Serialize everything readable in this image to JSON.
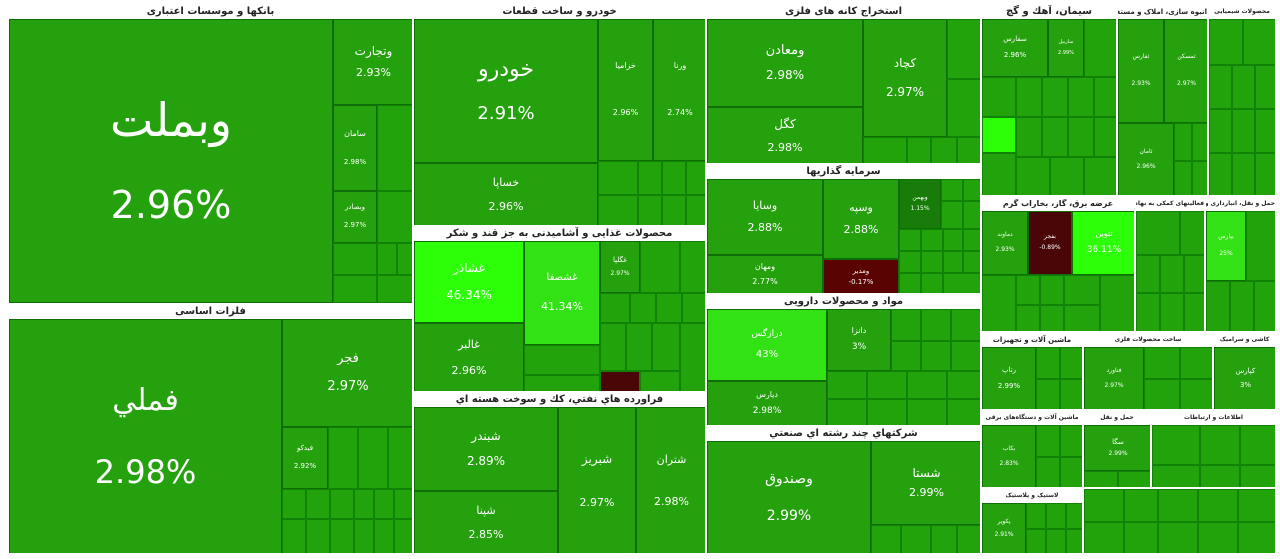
{
  "sectors": [
    {
      "id": "banks",
      "title": "بانکها و موسسات اعتباری",
      "tiles": [
        {
          "name": "وبملت",
          "pct": "2.96%"
        },
        {
          "name": "وتجارت",
          "pct": "2.93%"
        },
        {
          "name": "سامان",
          "pct": "2.98%"
        },
        {
          "name": "وبصادر",
          "pct": "2.97%"
        }
      ]
    },
    {
      "id": "basic-metals",
      "title": "فلزات اساسی",
      "tiles": [
        {
          "name": "فملي",
          "pct": "2.98%"
        },
        {
          "name": "فجر",
          "pct": "2.97%"
        },
        {
          "name": "فيدکو",
          "pct": "2.92%"
        }
      ]
    },
    {
      "id": "auto",
      "title": "خودرو و ساخت قطعات",
      "tiles": [
        {
          "name": "خودرو",
          "pct": "2.91%"
        },
        {
          "name": "خساپا",
          "pct": "2.96%"
        },
        {
          "name": "خزاميا",
          "pct": "2.96%"
        },
        {
          "name": "ورنا",
          "pct": "2.74%"
        }
      ]
    },
    {
      "id": "food",
      "title": "محصولات غذایی و آشامیدنی به جز قند و شکر",
      "tiles": [
        {
          "name": "غشاذر",
          "pct": "46.34%"
        },
        {
          "name": "غشصفا",
          "pct": "41.34%"
        },
        {
          "name": "غالبر",
          "pct": "2.96%"
        },
        {
          "name": "غگلپا",
          "pct": "2.97%"
        }
      ]
    },
    {
      "id": "oil",
      "title": "فراورده هاي نفتي، كك و سوخت هسته اي",
      "tiles": [
        {
          "name": "شبندر",
          "pct": "2.89%"
        },
        {
          "name": "شبریز",
          "pct": "2.97%"
        },
        {
          "name": "شتران",
          "pct": "2.98%"
        },
        {
          "name": "شپنا",
          "pct": "2.85%"
        }
      ]
    },
    {
      "id": "mining",
      "title": "استخراج کانه های فلزی",
      "tiles": [
        {
          "name": "ومعادن",
          "pct": "2.98%"
        },
        {
          "name": "کچاد",
          "pct": "2.97%"
        },
        {
          "name": "کگل",
          "pct": "2.98%"
        }
      ]
    },
    {
      "id": "investment",
      "title": "سرمایه گذاریها",
      "tiles": [
        {
          "name": "وسایا",
          "pct": "2.88%"
        },
        {
          "name": "وسپه",
          "pct": "2.88%"
        },
        {
          "name": "ومهان",
          "pct": "2.77%"
        },
        {
          "name": "وبهمن",
          "pct": "1.15%"
        },
        {
          "name": "ومدیر",
          "pct": "-0.17%"
        }
      ]
    },
    {
      "id": "pharma",
      "title": "مواد و محصولات دارویی",
      "tiles": [
        {
          "name": "درازگس",
          "pct": "43%"
        },
        {
          "name": "دانزا",
          "pct": "3%"
        },
        {
          "name": "دیارس",
          "pct": "2.98%"
        }
      ]
    },
    {
      "id": "diversified",
      "title": "شرکتهاي چند رشته اي صنعتي",
      "tiles": [
        {
          "name": "وصندوق",
          "pct": "2.99%"
        },
        {
          "name": "شستا",
          "pct": "2.99%"
        }
      ]
    },
    {
      "id": "cement",
      "title": "سیمان، آهك و گچ",
      "tiles": [
        {
          "name": "سفارس",
          "pct": "2.96%"
        },
        {
          "name": "ساربیل",
          "pct": "2.99%"
        }
      ]
    },
    {
      "id": "construction",
      "title": "انبوه سازی، املاک و مستغلات",
      "tiles": [
        {
          "name": "ثفارس",
          "pct": "2.93%"
        },
        {
          "name": "ثمسکن",
          "pct": "2.97%"
        },
        {
          "name": "ثامان",
          "pct": "2.96%"
        }
      ]
    },
    {
      "id": "chemical",
      "title": "محصولات شیمیایی",
      "tiles": []
    },
    {
      "id": "multi-a",
      "title": "عرضه برق، گاز، بخاراب گرم",
      "tiles": [
        {
          "name": "بفجر",
          "pct": "-0.89%"
        },
        {
          "name": "تنوین",
          "pct": "36.11%"
        },
        {
          "name": "دماوند",
          "pct": "2.93%"
        }
      ]
    },
    {
      "id": "info",
      "title": "فعالیتهای کمکی به نهادهای مالی",
      "tiles": []
    },
    {
      "id": "pharma-b",
      "title": "حمل و نقل، انبارداری و ارتباطات",
      "tiles": [
        {
          "name": "بپارس",
          "pct": "25%"
        }
      ]
    },
    {
      "id": "machinery",
      "title": "ماشین آلات و تجهیزات",
      "tiles": [
        {
          "name": "رتاپ",
          "pct": "2.99%"
        }
      ]
    },
    {
      "id": "electric",
      "title": "ماشین آلات و دستگاه‌های برقی",
      "tiles": [
        {
          "name": "بکاب",
          "pct": "2.83%"
        }
      ]
    },
    {
      "id": "metal-prod",
      "title": "ساخت محصولات فلزی",
      "tiles": [
        {
          "name": "فناورد",
          "pct": "2.97%"
        }
      ]
    },
    {
      "id": "ceramic",
      "title": "کاشی و سرامیک",
      "tiles": [
        {
          "name": "کپارس",
          "pct": "3%"
        }
      ]
    },
    {
      "id": "rubber",
      "title": "لاستیک و پلاستیک",
      "tiles": [
        {
          "name": "پکویر",
          "pct": "2.91%"
        }
      ]
    },
    {
      "id": "transport",
      "title": "حمل و نقل",
      "tiles": [
        {
          "name": "سگا",
          "pct": "2.99%"
        }
      ]
    },
    {
      "id": "telecom",
      "title": "اطلاعات و ارتباطات",
      "tiles": []
    }
  ],
  "colors": {
    "up": "#24a10d",
    "strong_up": "#2dff09",
    "down": "#5a0303",
    "border": "#ffffff"
  }
}
